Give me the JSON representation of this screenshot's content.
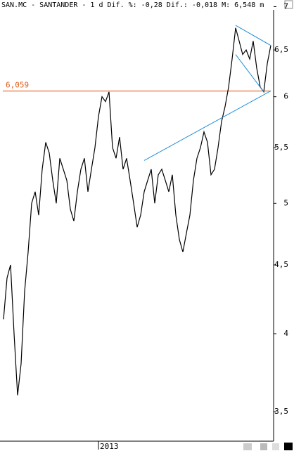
{
  "chart_data": {
    "type": "line",
    "title": "SAN.MC - SANTANDER -  1 d Dif. %: -0,28 Dif.: -0,018 M: 6,548 m",
    "log_scale": true,
    "grid": false,
    "ylim": [
      3.34,
      7.08
    ],
    "yticks": [
      {
        "value": 3.5,
        "label": "3,5"
      },
      4,
      {
        "value": 4.5,
        "label": "4,5"
      },
      5,
      {
        "value": 5.5,
        "label": "5,5"
      },
      6,
      {
        "value": 6.5,
        "label": "6,5"
      },
      7
    ],
    "categories": [
      null,
      null,
      null,
      null,
      null,
      null,
      null,
      null,
      null,
      null,
      null,
      null,
      null,
      null,
      null,
      null,
      null,
      null,
      null,
      null,
      null,
      null,
      null,
      null,
      null,
      null,
      null,
      "2013",
      null,
      null,
      null,
      null,
      null,
      null,
      null,
      null,
      null,
      null,
      null,
      null,
      null,
      null,
      null,
      null,
      null,
      null,
      null,
      null,
      null,
      null,
      null,
      null,
      null,
      null,
      null,
      null,
      null,
      null,
      null,
      null,
      null,
      null,
      null,
      null,
      null,
      null,
      null,
      null,
      null,
      null,
      null,
      null,
      null,
      null,
      null,
      null,
      null
    ],
    "series": [
      {
        "color": "#000000",
        "values": [
          4.1,
          4.4,
          4.5,
          4.0,
          3.6,
          3.8,
          4.3,
          4.6,
          5.0,
          5.1,
          4.9,
          5.3,
          5.55,
          5.45,
          5.2,
          5.0,
          5.4,
          5.3,
          5.2,
          4.95,
          4.85,
          5.1,
          5.3,
          5.4,
          5.1,
          5.3,
          5.5,
          5.8,
          6.0,
          5.95,
          6.05,
          5.5,
          5.4,
          5.6,
          5.3,
          5.4,
          5.2,
          5.0,
          4.8,
          4.9,
          5.1,
          5.2,
          5.3,
          5.0,
          5.25,
          5.3,
          5.2,
          5.1,
          5.25,
          4.9,
          4.7,
          4.6,
          4.75,
          4.9,
          5.2,
          5.4,
          5.5,
          5.65,
          5.55,
          5.25,
          5.3,
          5.5,
          5.75,
          5.9,
          6.1,
          6.4,
          6.75,
          6.6,
          6.45,
          6.5,
          6.4,
          6.6,
          6.3,
          6.1,
          6.05,
          6.35,
          6.55
        ]
      }
    ],
    "hlines": [
      {
        "value": 6.059,
        "label": "6,059",
        "color": "#e0601c"
      }
    ],
    "trend_lines": [
      {
        "color": "#1f8fd6",
        "points": [
          [
            40,
            5.38
          ],
          [
            76,
            6.06
          ]
        ]
      },
      {
        "color": "#1f8fd6",
        "points": [
          [
            66,
            6.78
          ],
          [
            76,
            6.55
          ]
        ]
      },
      {
        "color": "#1f8fd6",
        "points": [
          [
            66,
            6.45
          ],
          [
            74,
            6.05
          ]
        ]
      }
    ]
  }
}
